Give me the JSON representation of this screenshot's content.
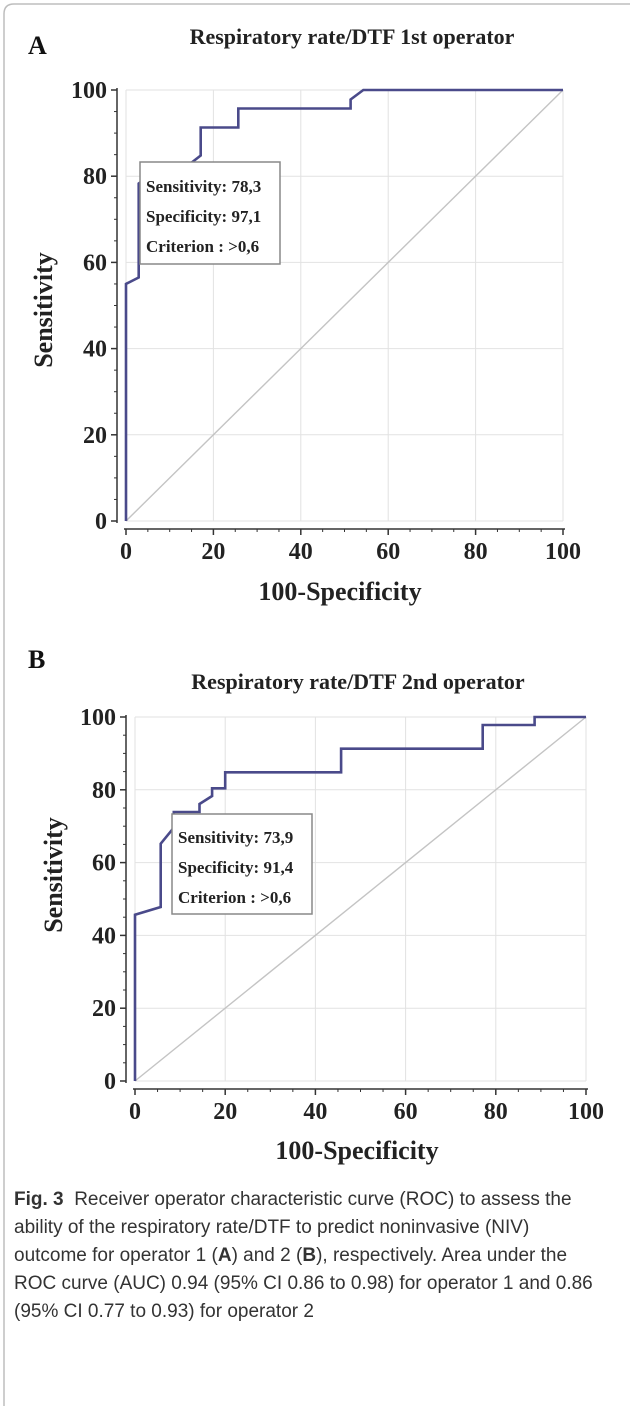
{
  "figure": {
    "label": "Fig. 3",
    "caption": {
      "p1": "Receiver operator characteristic curve (ROC) to assess the ability of the respiratory rate/DTF to predict noninvasive (NIV) outcome for operator 1 (",
      "a": "A",
      "p2": ") and 2 (",
      "b": "B",
      "p3": "), respectively. Area under the ROC curve (AUC) 0.94 (95% CI 0.86 to 0.98) for operator 1 and 0.86 (95% CI 0.77 to 0.93) for operator 2"
    }
  },
  "chart_data": [
    {
      "type": "line",
      "panel": "A",
      "title": "Respiratory rate/DTF 1st operator",
      "xlabel": "100-Specificity",
      "ylabel": "Sensitivity",
      "xlim": [
        0,
        100
      ],
      "ylim": [
        0,
        100
      ],
      "xticks": [
        0,
        20,
        40,
        60,
        80,
        100
      ],
      "yticks": [
        0,
        20,
        40,
        60,
        80,
        100
      ],
      "grid": true,
      "curve_color": "#4a4a8a",
      "series": [
        {
          "x": [
            0,
            0,
            0,
            0,
            0,
            2.9,
            2.9,
            2.9,
            8.6,
            8.6,
            14.3,
            17.1,
            17.1,
            25.7,
            25.7,
            51.4,
            51.4,
            54.3,
            100
          ],
          "y": [
            0,
            26,
            55,
            55,
            55,
            56.5,
            78.3,
            78.3,
            82.6,
            82.6,
            82.6,
            84.8,
            91.3,
            91.3,
            95.7,
            95.7,
            97.8,
            100,
            100
          ]
        }
      ],
      "diagonal": {
        "x": [
          0,
          100
        ],
        "y": [
          0,
          100
        ]
      },
      "annotation": {
        "line1": "Sensitivity: 78,3",
        "line2": "Specificity: 97,1",
        "line3": "Criterion : >0,6"
      }
    },
    {
      "type": "line",
      "panel": "B",
      "title": "Respiratory rate/DTF 2nd operator",
      "xlabel": "100-Specificity",
      "ylabel": "Sensitivity",
      "xlim": [
        0,
        100
      ],
      "ylim": [
        0,
        100
      ],
      "xticks": [
        0,
        20,
        40,
        60,
        80,
        100
      ],
      "yticks": [
        0,
        20,
        40,
        60,
        80,
        100
      ],
      "grid": true,
      "curve_color": "#4a4a8a",
      "series": [
        {
          "x": [
            0,
            0,
            5.7,
            5.7,
            8.6,
            8.6,
            14.3,
            14.3,
            17.1,
            17.1,
            20,
            20,
            45.7,
            45.7,
            77.1,
            77.1,
            88.6,
            88.6,
            100
          ],
          "y": [
            0,
            45.7,
            47.8,
            65.2,
            69.6,
            73.9,
            73.9,
            76.1,
            78.3,
            80.4,
            80.4,
            84.8,
            84.8,
            91.3,
            91.3,
            97.8,
            97.8,
            100,
            100
          ]
        }
      ],
      "diagonal": {
        "x": [
          0,
          100
        ],
        "y": [
          0,
          100
        ]
      },
      "annotation": {
        "line1": "Sensitivity: 73,9",
        "line2": "Specificity: 91,4",
        "line3": "Criterion : >0,6"
      }
    }
  ]
}
